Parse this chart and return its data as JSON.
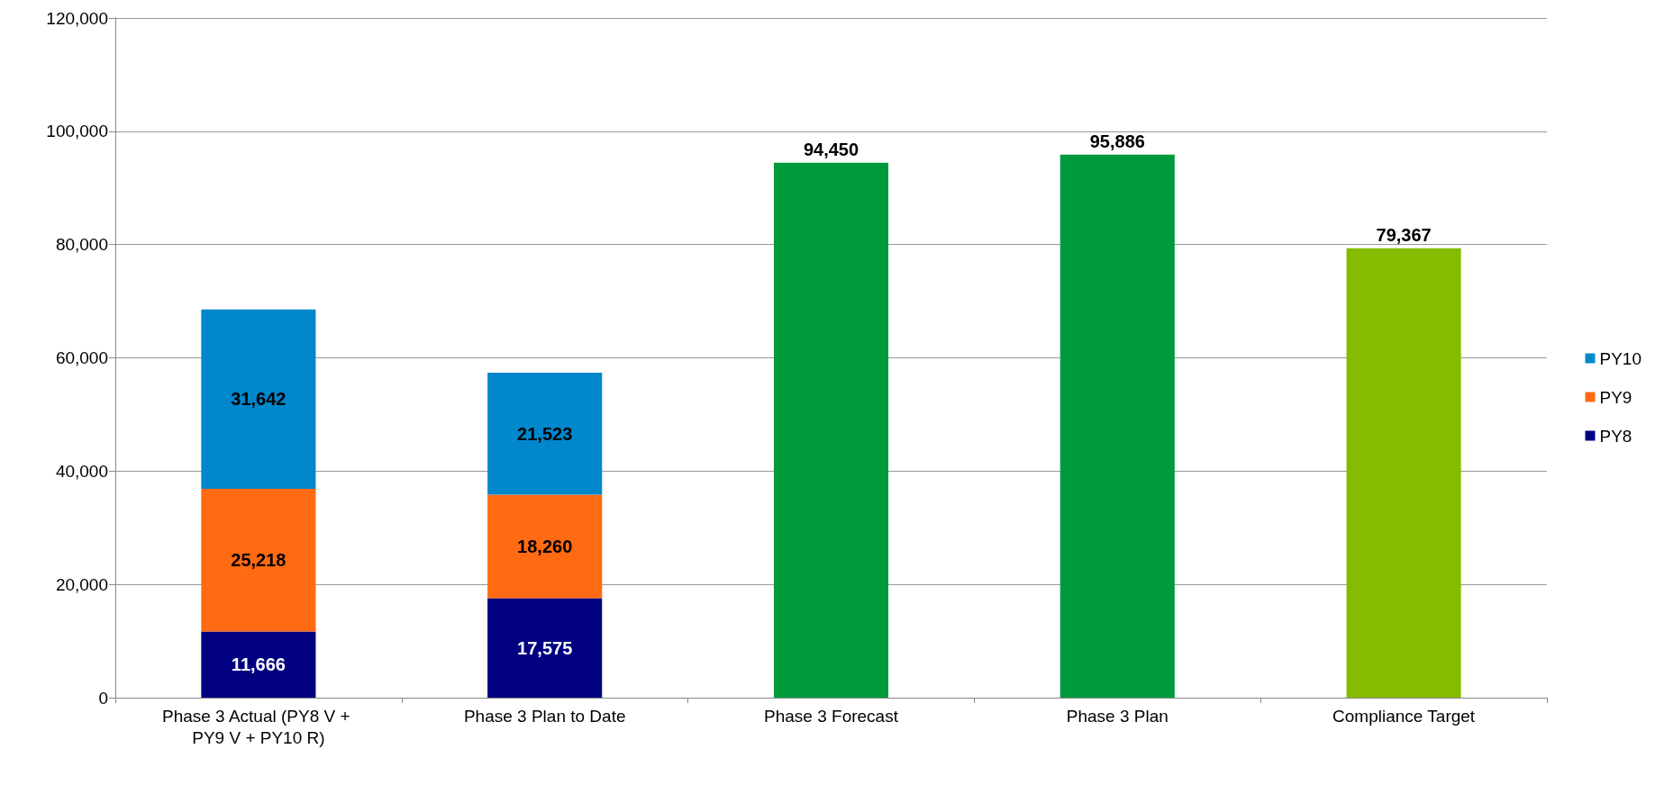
{
  "chart_data": {
    "type": "bar",
    "stacked": true,
    "grid": "y",
    "legend": "right",
    "categories": [
      "Phase 3 Actual (PY8 V + PY9 V + PY10 R)",
      "Phase 3 Plan to Date",
      "Phase 3 Forecast",
      "Phase 3 Plan",
      "Compliance Target"
    ],
    "ylim": [
      0,
      120000
    ],
    "yticks": [
      0,
      {
        "value": 20000,
        "label": "20,000"
      },
      {
        "value": 40000,
        "label": "40,000"
      },
      {
        "value": 60000,
        "label": "60,000"
      },
      {
        "value": 80000,
        "label": "80,000"
      },
      {
        "value": 100000,
        "label": "100,000"
      },
      {
        "value": 120000,
        "label": "120,000"
      }
    ],
    "series": [
      {
        "name": "PY8",
        "color": "#000080",
        "values": [
          11666,
          17575,
          null,
          null,
          null
        ],
        "value_labels": [
          "11,666",
          "17,575",
          null,
          null,
          null
        ]
      },
      {
        "name": "PY9",
        "color": "#ff6a13",
        "values": [
          25218,
          18260,
          null,
          null,
          null
        ],
        "value_labels": [
          "25,218",
          "18,260",
          null,
          null,
          null
        ]
      },
      {
        "name": "PY10",
        "color": "#0087cc",
        "values": [
          31642,
          21523,
          null,
          null,
          null
        ],
        "value_labels": [
          "31,642",
          "21,523",
          null,
          null,
          null
        ]
      },
      {
        "colors": [
          null,
          null,
          "#009a3d",
          "#009a3d",
          "#84bd00"
        ],
        "values": [
          null,
          null,
          94450,
          95886,
          79367
        ],
        "value_labels": [
          null,
          null,
          "94,450",
          "95,886",
          "79,367"
        ]
      }
    ]
  }
}
